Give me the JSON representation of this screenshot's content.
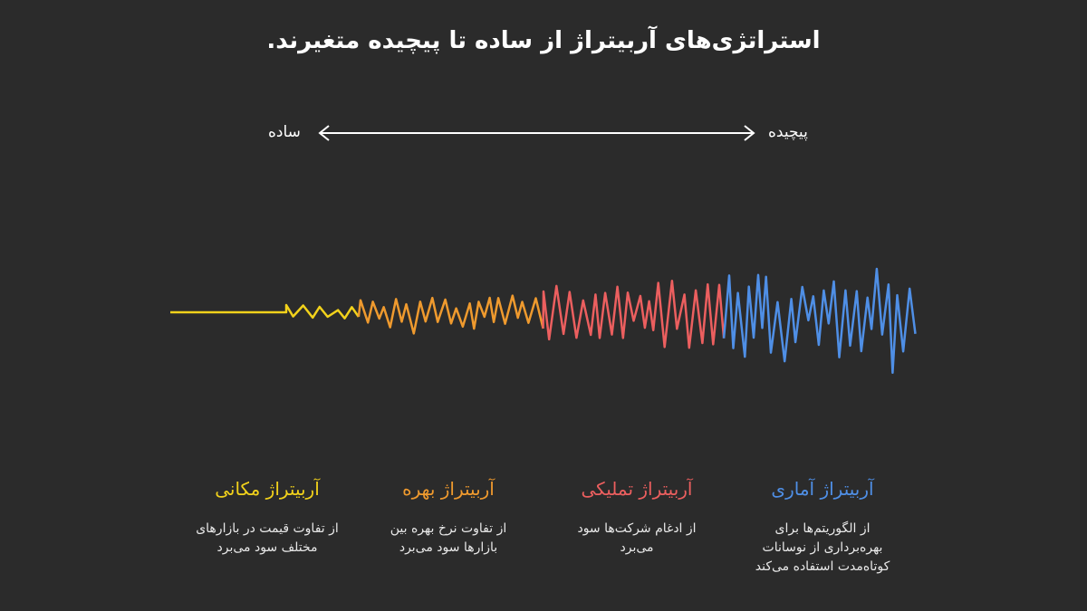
{
  "title": "استراتژی‌های آربیتراژ از ساده تا پیچیده متغیرند.",
  "scale": {
    "left_label": "ساده",
    "right_label": "پیچیده"
  },
  "colors": {
    "spatial": "#f2d21b",
    "interest": "#ef9a2e",
    "merger": "#ec5f5f",
    "statistical": "#4f8fe6",
    "background": "#2b2b2b"
  },
  "strategies": [
    {
      "title": "آربیتراژ مکانی",
      "desc_lines": [
        "از تفاوت قیمت در بازارهای",
        "مختلف سود می‌برد"
      ]
    },
    {
      "title": "آربیتراژ بهره",
      "desc_lines": [
        "از تفاوت نرخ بهره بین",
        "بازارها سود می‌برد"
      ]
    },
    {
      "title": "آربیتراژ تملیکی",
      "desc_lines": [
        "از ادغام شرکت‌ها سود",
        "می‌برد"
      ]
    },
    {
      "title": "آربیتراژ آماری",
      "desc_lines": [
        "از الگوریتم‌ها برای",
        "بهره‌برداری از نوسانات",
        "کوتاه‌مدت استفاده می‌کند"
      ]
    }
  ]
}
